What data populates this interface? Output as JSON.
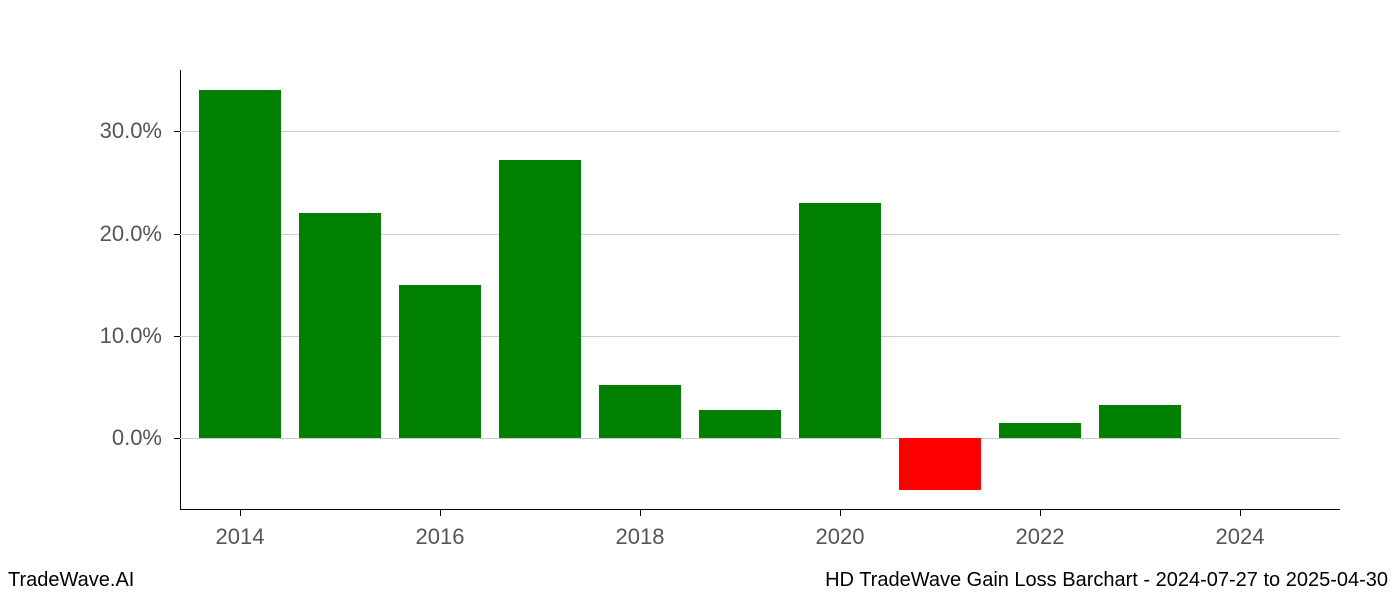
{
  "chart": {
    "type": "bar",
    "background_color": "#ffffff",
    "grid_color": "#cccccc",
    "axis_color": "#000000",
    "tick_label_color": "#555555",
    "tick_label_fontsize": 22,
    "positive_color": "#008000",
    "negative_color": "#ff0000",
    "ylim_min": -7.0,
    "ylim_max": 36.0,
    "y_ticks": [
      0.0,
      10.0,
      20.0,
      30.0
    ],
    "y_tick_labels": [
      "0.0%",
      "10.0%",
      "20.0%",
      "30.0%"
    ],
    "x_min": 2013.4,
    "x_max": 2025.0,
    "x_ticks": [
      2014,
      2016,
      2018,
      2020,
      2022,
      2024
    ],
    "x_tick_labels": [
      "2014",
      "2016",
      "2018",
      "2020",
      "2022",
      "2024"
    ],
    "bar_width_years": 0.82,
    "bars": [
      {
        "year": 2014,
        "value": 34.0
      },
      {
        "year": 2015,
        "value": 22.0
      },
      {
        "year": 2016,
        "value": 15.0
      },
      {
        "year": 2017,
        "value": 27.2
      },
      {
        "year": 2018,
        "value": 5.2
      },
      {
        "year": 2019,
        "value": 2.8
      },
      {
        "year": 2020,
        "value": 23.0
      },
      {
        "year": 2021,
        "value": -5.0
      },
      {
        "year": 2022,
        "value": 1.5
      },
      {
        "year": 2023,
        "value": 3.3
      }
    ]
  },
  "footer": {
    "left": "TradeWave.AI",
    "right": "HD TradeWave Gain Loss Barchart - 2024-07-27 to 2025-04-30"
  }
}
